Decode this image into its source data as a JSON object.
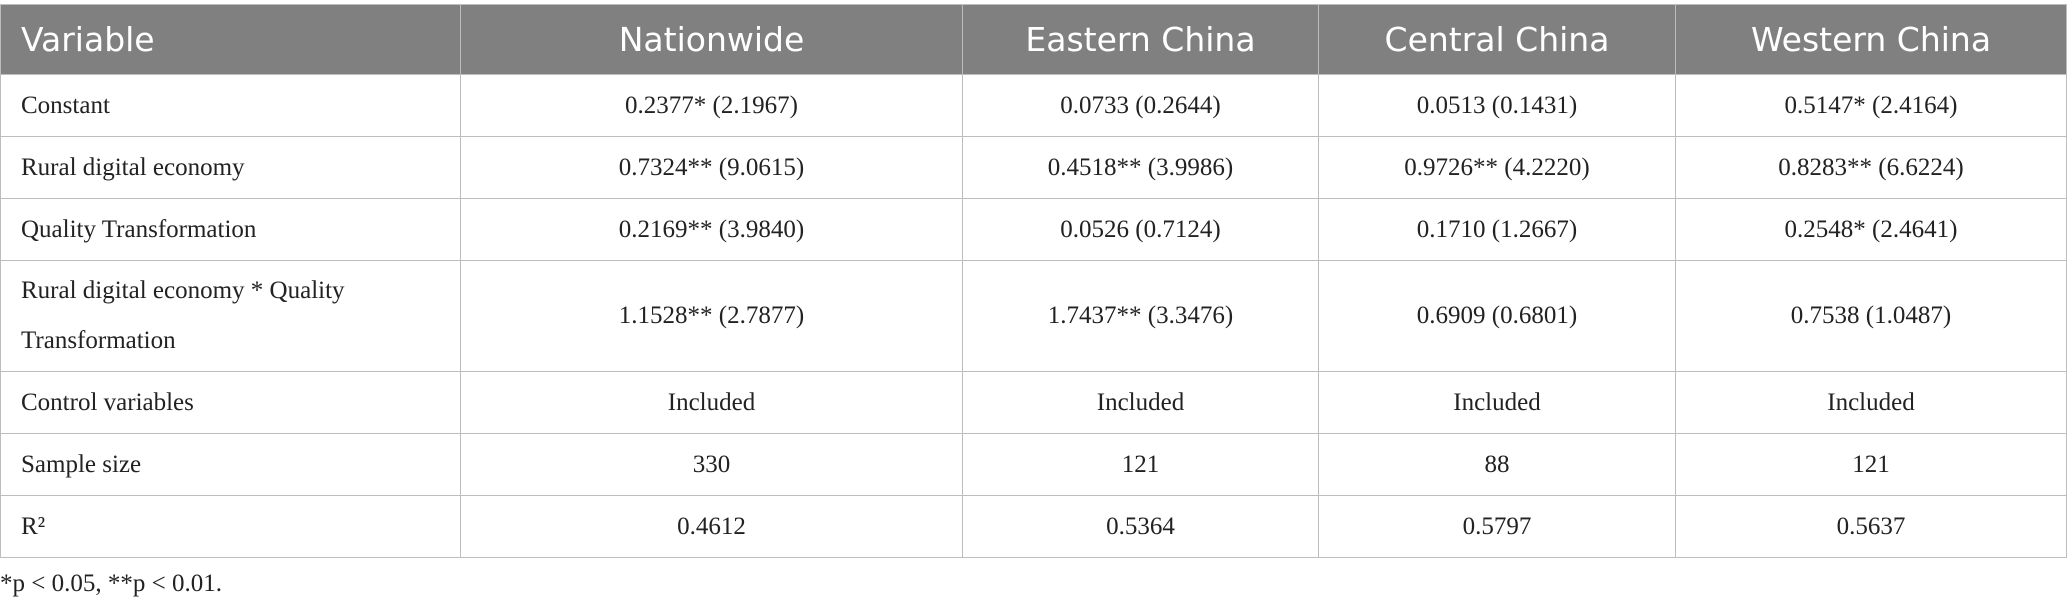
{
  "table": {
    "header": [
      "Variable",
      "Nationwide",
      "Eastern China",
      "Central China",
      "Western China"
    ],
    "rows": [
      [
        "Constant",
        "0.2377* (2.1967)",
        "0.0733 (0.2644)",
        "0.0513 (0.1431)",
        "0.5147* (2.4164)"
      ],
      [
        "Rural digital economy",
        "0.7324** (9.0615)",
        "0.4518** (3.9986)",
        "0.9726** (4.2220)",
        "0.8283** (6.6224)"
      ],
      [
        "Quality Transformation",
        "0.2169** (3.9840)",
        "0.0526 (0.7124)",
        "0.1710 (1.2667)",
        "0.2548* (2.4641)"
      ],
      [
        "Rural digital economy * Quality Transformation",
        "1.1528** (2.7877)",
        "1.7437** (3.3476)",
        "0.6909 (0.6801)",
        "0.7538 (1.0487)"
      ],
      [
        "Control variables",
        "Included",
        "Included",
        "Included",
        "Included"
      ],
      [
        "Sample size",
        "330",
        "121",
        "88",
        "121"
      ],
      [
        "R²",
        "0.4612",
        "0.5364",
        "0.5797",
        "0.5637"
      ]
    ]
  },
  "footnote": "*p < 0.05, **p < 0.01."
}
